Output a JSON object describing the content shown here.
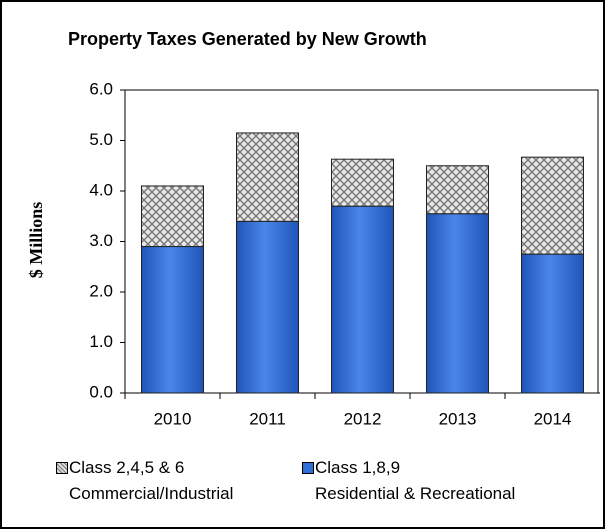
{
  "chart_data": {
    "type": "stacked_bar",
    "title": "Property Taxes Generated by New Growth",
    "y_label": "$ Millions",
    "categories": [
      "2010",
      "2011",
      "2012",
      "2013",
      "2014"
    ],
    "series": [
      {
        "name": "Class 1,8,9\nResidential & Recreational",
        "color": "#2f6fd6",
        "values": [
          2.9,
          3.4,
          3.7,
          3.55,
          2.75
        ]
      },
      {
        "name": "Class 2,4,5 & 6\nCommercial/Industrial",
        "color": "#b0b0b0",
        "values": [
          1.2,
          1.75,
          0.93,
          0.95,
          1.92
        ]
      }
    ],
    "ylim": [
      0,
      6
    ],
    "yticks": [
      {
        "value": 0,
        "label": "0.0"
      },
      {
        "value": 1,
        "label": "1.0"
      },
      {
        "value": 2,
        "label": "2.0"
      },
      {
        "value": 3,
        "label": "3.0"
      },
      {
        "value": 4,
        "label": "4.0"
      },
      {
        "value": 5,
        "label": "5.0"
      },
      {
        "value": 6,
        "label": "6.0"
      }
    ],
    "grid": false
  }
}
